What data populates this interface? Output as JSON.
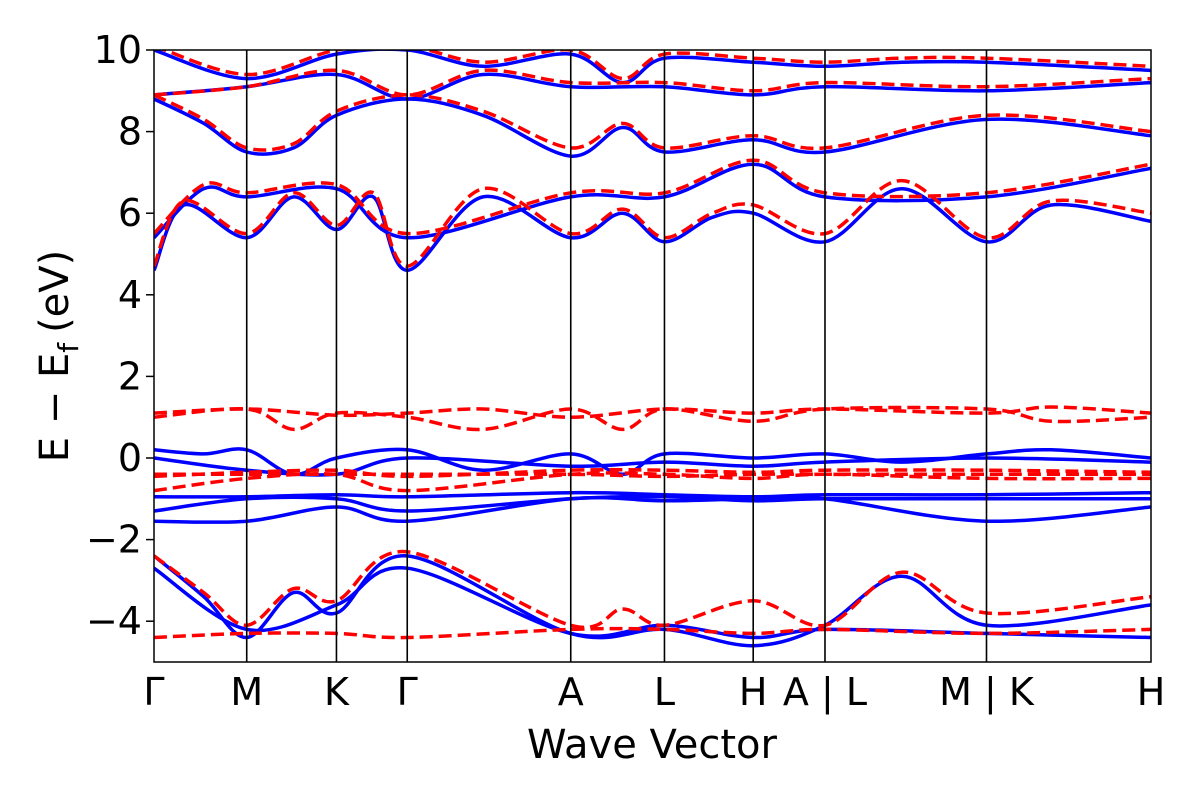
{
  "chart_data": {
    "type": "line",
    "title": "",
    "xlabel": "Wave Vector",
    "ylabel_main": "E − E",
    "ylabel_sub": "f",
    "ylabel_unit": "(eV)",
    "ylim": [
      -5,
      10
    ],
    "y_ticks": [
      {
        "value": 10,
        "label": "10"
      },
      {
        "value": 8,
        "label": "8"
      },
      {
        "value": 6,
        "label": "6"
      },
      {
        "value": 4,
        "label": "4"
      },
      {
        "value": 2,
        "label": "2"
      },
      {
        "value": 0,
        "label": "0"
      },
      {
        "value": -2,
        "label": "−2"
      },
      {
        "value": -4,
        "label": "−4"
      }
    ],
    "kpath": {
      "range": [
        0,
        1
      ],
      "points": [
        {
          "x": 0.0,
          "label": "Γ"
        },
        {
          "x": 0.093,
          "label": "M"
        },
        {
          "x": 0.183,
          "label": "K"
        },
        {
          "x": 0.254,
          "label": "Γ"
        },
        {
          "x": 0.418,
          "label": "A"
        },
        {
          "x": 0.512,
          "label": "L"
        },
        {
          "x": 0.601,
          "label": "H"
        },
        {
          "x": 0.673,
          "label": "A | L"
        },
        {
          "x": 0.835,
          "label": "M | K"
        },
        {
          "x": 1.0,
          "label": "H"
        }
      ]
    },
    "series": [
      {
        "style": "solid",
        "color": "#0000ff",
        "bands": [
          {
            "x": [
              0,
              0.093,
              0.183,
              0.254,
              0.418,
              0.512,
              0.601,
              0.673,
              0.835,
              1.0
            ],
            "y": [
              -2.7,
              -4.2,
              -3.6,
              -2.7,
              -4.3,
              -4.1,
              -4.4,
              -4.2,
              -4.3,
              -4.4
            ]
          },
          {
            "x": [
              0,
              0.05,
              0.093,
              0.14,
              0.183,
              0.254,
              0.418,
              0.512,
              0.601,
              0.673,
              0.75,
              0.835,
              1.0
            ],
            "y": [
              -2.4,
              -3.4,
              -4.4,
              -3.3,
              -3.8,
              -2.4,
              -4.3,
              -4.2,
              -4.6,
              -4.1,
              -2.9,
              -4.1,
              -3.6
            ]
          },
          {
            "x": [
              0,
              0.093,
              0.183,
              0.254,
              0.418,
              0.512,
              0.601,
              0.673,
              0.835,
              1.0
            ],
            "y": [
              -1.55,
              -1.55,
              -1.2,
              -1.55,
              -1.0,
              -1.05,
              -1.0,
              -1.0,
              -1.55,
              -1.2
            ]
          },
          {
            "x": [
              0,
              0.093,
              0.183,
              0.254,
              0.418,
              0.512,
              0.601,
              0.673,
              0.835,
              1.0
            ],
            "y": [
              -1.3,
              -1.0,
              -1.0,
              -1.3,
              -1.0,
              -0.95,
              -1.05,
              -1.0,
              -1.0,
              -1.0
            ]
          },
          {
            "x": [
              0,
              0.093,
              0.183,
              0.254,
              0.418,
              0.512,
              0.601,
              0.673,
              0.835,
              1.0
            ],
            "y": [
              -0.95,
              -0.95,
              -0.9,
              -0.95,
              -0.85,
              -0.9,
              -0.95,
              -0.9,
              -0.9,
              -0.85
            ]
          },
          {
            "x": [
              0,
              0.05,
              0.093,
              0.14,
              0.183,
              0.254,
              0.33,
              0.418,
              0.47,
              0.512,
              0.601,
              0.673,
              0.75,
              0.835,
              0.9,
              1.0
            ],
            "y": [
              0.2,
              0.1,
              0.2,
              -0.4,
              0.0,
              0.2,
              -0.3,
              0.1,
              -0.4,
              0.1,
              0.0,
              0.1,
              -0.1,
              0.1,
              0.2,
              0.0
            ]
          },
          {
            "x": [
              0,
              0.093,
              0.183,
              0.254,
              0.418,
              0.512,
              0.601,
              0.673,
              0.835,
              1.0
            ],
            "y": [
              0.0,
              -0.3,
              -0.4,
              0.0,
              -0.2,
              -0.1,
              -0.2,
              -0.1,
              0.0,
              -0.1
            ]
          },
          {
            "x": [
              0,
              0.03,
              0.093,
              0.14,
              0.183,
              0.22,
              0.254,
              0.33,
              0.418,
              0.47,
              0.512,
              0.56,
              0.601,
              0.673,
              0.75,
              0.835,
              0.9,
              1.0
            ],
            "y": [
              4.6,
              6.2,
              5.4,
              6.4,
              5.6,
              6.4,
              4.6,
              6.4,
              5.4,
              6.0,
              5.3,
              5.9,
              6.0,
              5.3,
              6.6,
              5.3,
              6.2,
              5.8
            ]
          },
          {
            "x": [
              0,
              0.05,
              0.093,
              0.183,
              0.254,
              0.418,
              0.512,
              0.601,
              0.673,
              0.835,
              1.0
            ],
            "y": [
              5.4,
              6.6,
              6.4,
              6.6,
              5.4,
              6.4,
              6.4,
              7.2,
              6.4,
              6.4,
              7.1
            ]
          },
          {
            "x": [
              0,
              0.05,
              0.093,
              0.14,
              0.183,
              0.254,
              0.33,
              0.418,
              0.47,
              0.512,
              0.601,
              0.673,
              0.835,
              1.0
            ],
            "y": [
              8.8,
              8.2,
              7.5,
              7.6,
              8.4,
              8.8,
              8.4,
              7.4,
              8.1,
              7.5,
              7.8,
              7.5,
              8.3,
              7.9
            ]
          },
          {
            "x": [
              0,
              0.093,
              0.183,
              0.254,
              0.33,
              0.418,
              0.512,
              0.601,
              0.673,
              0.835,
              1.0
            ],
            "y": [
              8.9,
              9.1,
              9.4,
              8.8,
              9.4,
              9.1,
              9.1,
              8.9,
              9.1,
              9.0,
              9.2
            ]
          },
          {
            "x": [
              0,
              0.093,
              0.183,
              0.254,
              0.33,
              0.418,
              0.47,
              0.512,
              0.601,
              0.673,
              0.75,
              0.835,
              1.0
            ],
            "y": [
              10.0,
              9.3,
              9.9,
              10.0,
              9.6,
              9.9,
              9.2,
              9.8,
              9.7,
              9.6,
              9.7,
              9.7,
              9.5
            ]
          }
        ]
      },
      {
        "style": "dashed",
        "color": "#ff0000",
        "bands": [
          {
            "x": [
              0,
              0.093,
              0.183,
              0.254,
              0.418,
              0.512,
              0.601,
              0.673,
              0.835,
              1.0
            ],
            "y": [
              -4.4,
              -4.3,
              -4.3,
              -4.4,
              -4.2,
              -4.2,
              -4.3,
              -4.2,
              -4.3,
              -4.2
            ]
          },
          {
            "x": [
              0,
              0.05,
              0.093,
              0.14,
              0.183,
              0.254,
              0.418,
              0.47,
              0.512,
              0.601,
              0.673,
              0.75,
              0.835,
              1.0
            ],
            "y": [
              -2.4,
              -3.3,
              -4.1,
              -3.2,
              -3.5,
              -2.3,
              -4.1,
              -3.7,
              -4.1,
              -3.5,
              -4.1,
              -2.8,
              -3.8,
              -3.4
            ]
          },
          {
            "x": [
              0,
              0.093,
              0.183,
              0.254,
              0.418,
              0.512,
              0.601,
              0.673,
              0.835,
              1.0
            ],
            "y": [
              -0.8,
              -0.5,
              -0.4,
              -0.8,
              -0.4,
              -0.4,
              -0.5,
              -0.4,
              -0.5,
              -0.5
            ]
          },
          {
            "x": [
              0,
              0.093,
              0.183,
              0.254,
              0.418,
              0.512,
              0.601,
              0.673,
              0.835,
              1.0
            ],
            "y": [
              -0.45,
              -0.35,
              -0.3,
              -0.45,
              -0.3,
              -0.3,
              -0.35,
              -0.3,
              -0.3,
              -0.35
            ]
          },
          {
            "x": [
              0,
              0.093,
              0.183,
              0.254,
              0.418,
              0.512,
              0.601,
              0.673,
              0.835,
              1.0
            ],
            "y": [
              -0.4,
              -0.4,
              -0.4,
              -0.4,
              -0.4,
              -0.45,
              -0.4,
              -0.4,
              -0.4,
              -0.4
            ]
          },
          {
            "x": [
              0,
              0.093,
              0.14,
              0.183,
              0.254,
              0.33,
              0.418,
              0.47,
              0.512,
              0.601,
              0.673,
              0.835,
              0.9,
              1.0
            ],
            "y": [
              1.0,
              1.2,
              0.7,
              1.1,
              1.0,
              0.7,
              1.2,
              0.7,
              1.2,
              0.9,
              1.2,
              1.2,
              0.9,
              1.0
            ]
          },
          {
            "x": [
              0,
              0.093,
              0.183,
              0.254,
              0.33,
              0.418,
              0.512,
              0.601,
              0.673,
              0.835,
              0.9,
              1.0
            ],
            "y": [
              1.1,
              1.2,
              1.05,
              1.1,
              1.2,
              1.0,
              1.2,
              1.1,
              1.2,
              1.1,
              1.25,
              1.1
            ]
          },
          {
            "x": [
              0,
              0.03,
              0.093,
              0.14,
              0.183,
              0.22,
              0.254,
              0.33,
              0.418,
              0.47,
              0.512,
              0.56,
              0.601,
              0.673,
              0.75,
              0.835,
              0.9,
              1.0
            ],
            "y": [
              4.7,
              6.3,
              5.5,
              6.5,
              5.7,
              6.5,
              4.7,
              6.6,
              5.5,
              6.1,
              5.4,
              6.0,
              6.2,
              5.5,
              6.8,
              5.4,
              6.3,
              6.0
            ]
          },
          {
            "x": [
              0,
              0.05,
              0.093,
              0.183,
              0.254,
              0.418,
              0.512,
              0.601,
              0.673,
              0.835,
              1.0
            ],
            "y": [
              5.5,
              6.7,
              6.5,
              6.7,
              5.5,
              6.5,
              6.5,
              7.3,
              6.5,
              6.5,
              7.2
            ]
          },
          {
            "x": [
              0,
              0.05,
              0.093,
              0.14,
              0.183,
              0.254,
              0.33,
              0.418,
              0.47,
              0.512,
              0.601,
              0.673,
              0.835,
              1.0
            ],
            "y": [
              8.9,
              8.3,
              7.6,
              7.7,
              8.5,
              8.9,
              8.5,
              7.6,
              8.2,
              7.6,
              7.9,
              7.6,
              8.4,
              8.0
            ]
          },
          {
            "x": [
              0,
              0.093,
              0.183,
              0.254,
              0.33,
              0.418,
              0.512,
              0.601,
              0.673,
              0.835,
              1.0
            ],
            "y": [
              8.9,
              9.1,
              9.5,
              8.9,
              9.5,
              9.2,
              9.2,
              9.0,
              9.2,
              9.1,
              9.3
            ]
          },
          {
            "x": [
              0,
              0.093,
              0.183,
              0.254,
              0.33,
              0.418,
              0.47,
              0.512,
              0.601,
              0.673,
              0.75,
              0.835,
              1.0
            ],
            "y": [
              10.1,
              9.4,
              10.0,
              10.1,
              9.7,
              10.0,
              9.3,
              9.9,
              9.8,
              9.7,
              9.8,
              9.8,
              9.6
            ]
          }
        ]
      }
    ]
  }
}
